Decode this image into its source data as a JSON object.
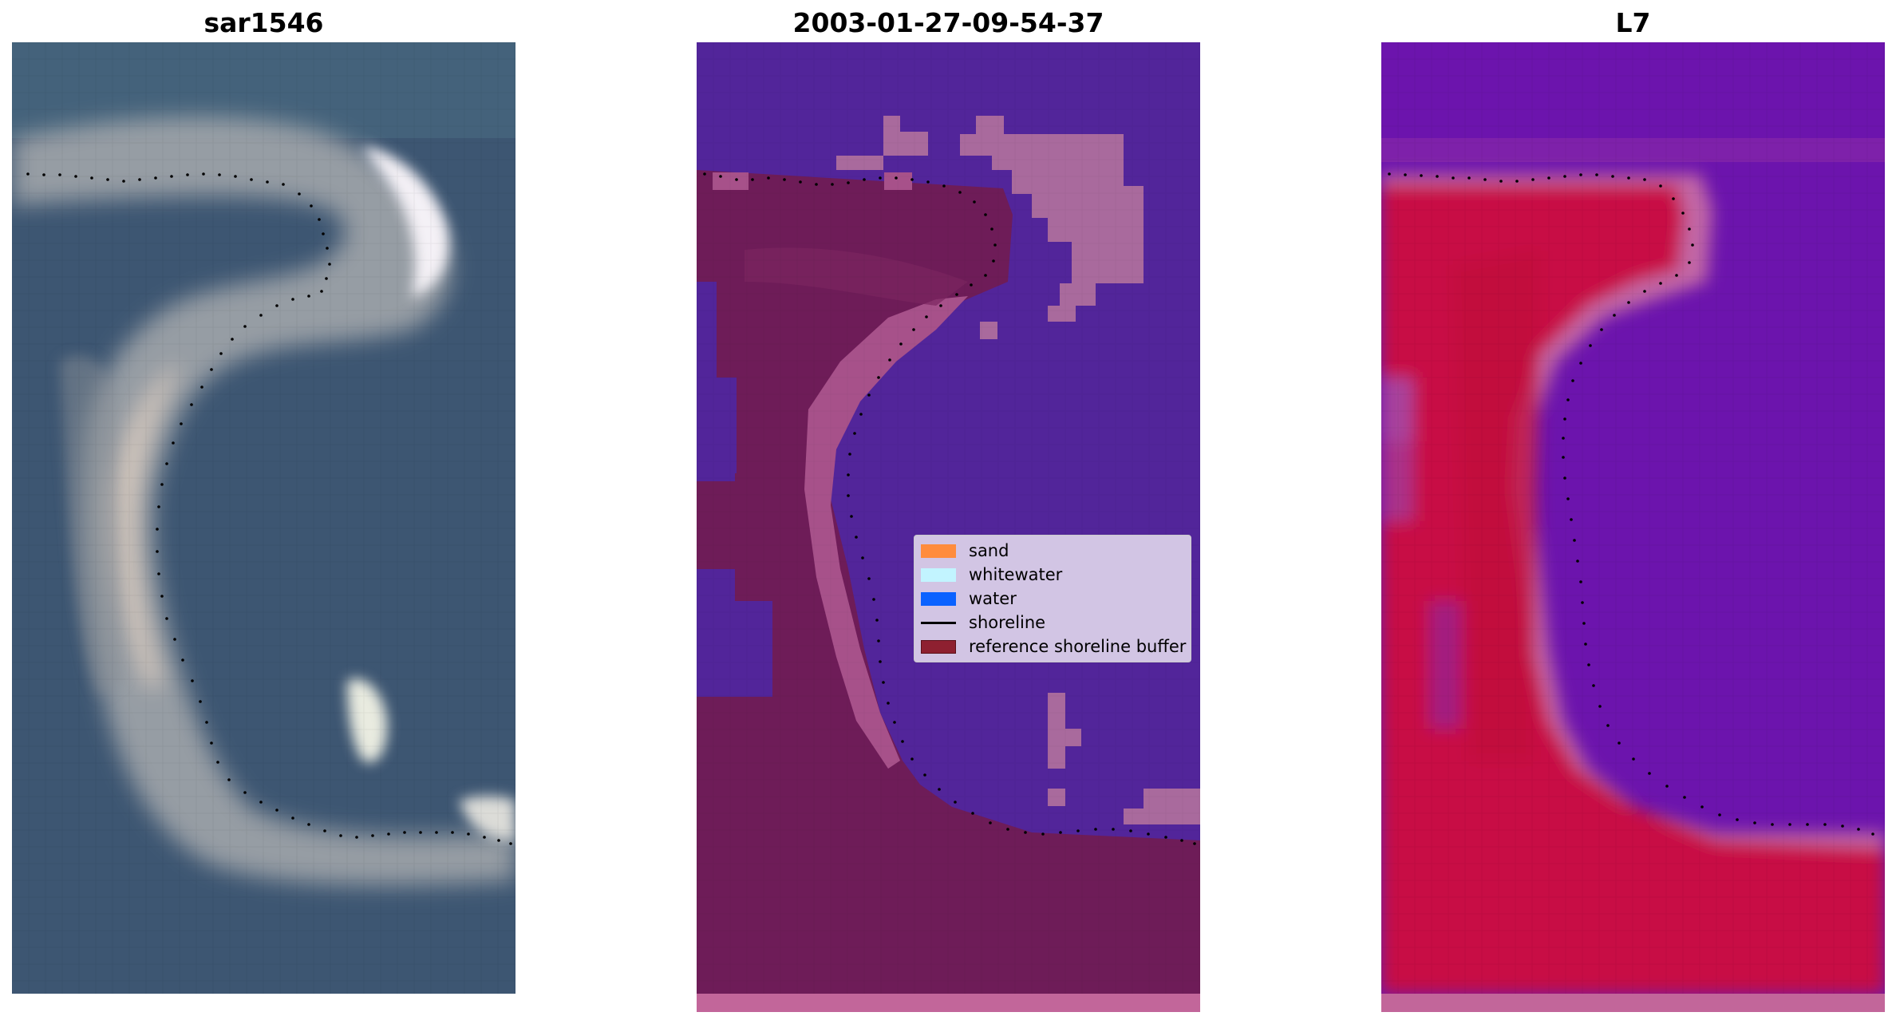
{
  "panels": [
    {
      "title": "sar1546"
    },
    {
      "title": "2003-01-27-09-54-37"
    },
    {
      "title": "L7"
    }
  ],
  "legend": {
    "items": [
      {
        "label": "sand",
        "color": "#ff8c3d",
        "kind": "patch"
      },
      {
        "label": "whitewater",
        "color": "#c2f4ff",
        "kind": "patch"
      },
      {
        "label": "water",
        "color": "#0b62ff",
        "kind": "patch"
      },
      {
        "label": "shoreline",
        "color": "#000000",
        "kind": "line"
      },
      {
        "label": "reference shoreline buffer",
        "color": "#8e2030",
        "kind": "patch"
      }
    ]
  },
  "colors": {
    "rgb_background": "#3b5573",
    "rgb_sand": "#d9cfc6",
    "rgb_whitewater": "#f6f4f8",
    "class_water": "#52259a",
    "class_buffer": "#6e1c58",
    "class_land_light": "#a7518a",
    "class_patch": "#a96a9d",
    "class_strip": "#c2669a",
    "mndwi_water": "#6c14ad",
    "mndwi_land": "#c80f45",
    "mndwi_edge": "#c267a6"
  }
}
